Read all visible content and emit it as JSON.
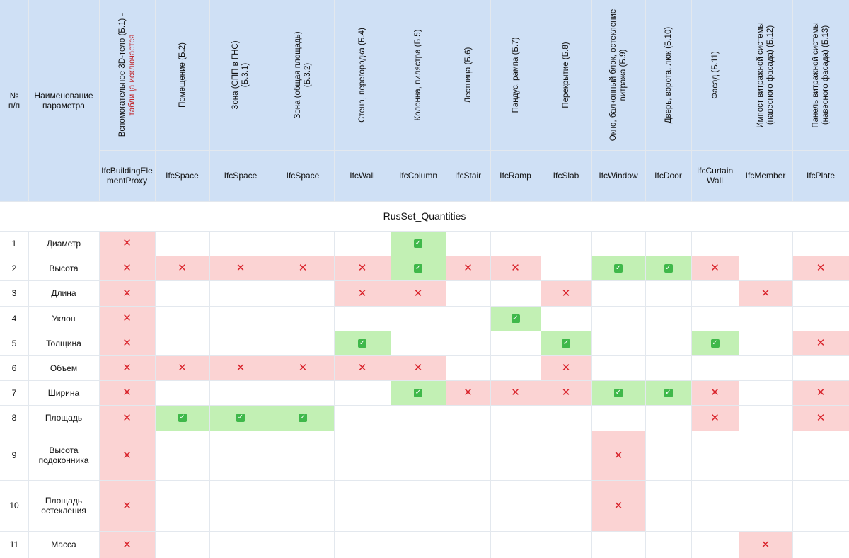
{
  "header": {
    "num_label": "№\nп/п",
    "name_label": "Наименование\nпараметра",
    "columns": [
      {
        "lines": [
          "Вспомогательное 3D-тело (Б.1) -"
        ],
        "warn": "таблица исключается",
        "ifc": "IfcBuildingElementProxy"
      },
      {
        "lines": [
          "Помещение (Б.2)"
        ],
        "ifc": "IfcSpace"
      },
      {
        "lines": [
          "Зона (СПП в ГНС)",
          "(Б.3.1)"
        ],
        "ifc": "IfcSpace"
      },
      {
        "lines": [
          "Зона (общая площадь)",
          "(Б.3.2)"
        ],
        "ifc": "IfcSpace"
      },
      {
        "lines": [
          "Стена, перегородка (Б.4)"
        ],
        "ifc": "IfcWall"
      },
      {
        "lines": [
          "Колонна, пилястра (Б.5)"
        ],
        "ifc": "IfcColumn"
      },
      {
        "lines": [
          "Лестница (Б.6)"
        ],
        "ifc": "IfcStair"
      },
      {
        "lines": [
          "Пандус, рампа (Б.7)"
        ],
        "ifc": "IfcRamp"
      },
      {
        "lines": [
          "Перекрытие (Б.8)"
        ],
        "ifc": "IfcSlab"
      },
      {
        "lines": [
          "Окно, балконный блок, остекление",
          "витража (Б.9)"
        ],
        "ifc": "IfcWindow"
      },
      {
        "lines": [
          "Дверь, ворота, люк (Б.10)"
        ],
        "ifc": "IfcDoor"
      },
      {
        "lines": [
          "Фасад (Б.11)"
        ],
        "ifc": "IfcCurtainWall"
      },
      {
        "lines": [
          "Импост витражной системы",
          "(навесного фасада) (Б.12)"
        ],
        "ifc": "IfcMember"
      },
      {
        "lines": [
          "Панель витражной системы",
          "(навесного фасада) (Б.13)"
        ],
        "ifc": "IfcPlate"
      }
    ]
  },
  "section_title": "RusSet_Quantities",
  "legend": {
    "x": "✕",
    "ok": "✓"
  },
  "rows": [
    {
      "num": "1",
      "name": "Диаметр",
      "cells": [
        "x",
        "",
        "",
        "",
        "",
        "ok",
        "",
        "",
        "",
        "",
        "",
        "",
        "",
        ""
      ]
    },
    {
      "num": "2",
      "name": "Высота",
      "cells": [
        "x",
        "x",
        "x",
        "x",
        "x",
        "ok",
        "x",
        "x",
        "",
        "ok",
        "ok",
        "x",
        "",
        "x"
      ]
    },
    {
      "num": "3",
      "name": "Длина",
      "cells": [
        "x",
        "",
        "",
        "",
        "x",
        "x",
        "",
        "",
        "x",
        "",
        "",
        "",
        "x",
        ""
      ]
    },
    {
      "num": "4",
      "name": "Уклон",
      "cells": [
        "x",
        "",
        "",
        "",
        "",
        "",
        "",
        "ok",
        "",
        "",
        "",
        "",
        "",
        ""
      ]
    },
    {
      "num": "5",
      "name": "Толщина",
      "cells": [
        "x",
        "",
        "",
        "",
        "ok",
        "",
        "",
        "",
        "ok",
        "",
        "",
        "ok",
        "",
        "x"
      ]
    },
    {
      "num": "6",
      "name": "Объем",
      "cells": [
        "x",
        "x",
        "x",
        "x",
        "x",
        "x",
        "",
        "",
        "x",
        "",
        "",
        "",
        "",
        ""
      ]
    },
    {
      "num": "7",
      "name": "Ширина",
      "cells": [
        "x",
        "",
        "",
        "",
        "",
        "ok",
        "x",
        "x",
        "x",
        "ok",
        "ok",
        "x",
        "",
        "x"
      ]
    },
    {
      "num": "8",
      "name": "Площадь",
      "cells": [
        "x",
        "ok",
        "ok",
        "ok",
        "",
        "",
        "",
        "",
        "",
        "",
        "",
        "x",
        "",
        "x"
      ]
    },
    {
      "num": "9",
      "name": "Высота\nподоконника",
      "cells": [
        "x",
        "",
        "",
        "",
        "",
        "",
        "",
        "",
        "",
        "x",
        "",
        "",
        "",
        ""
      ]
    },
    {
      "num": "10",
      "name": "Площадь\nостекления",
      "cells": [
        "x",
        "",
        "",
        "",
        "",
        "",
        "",
        "",
        "",
        "x",
        "",
        "",
        "",
        ""
      ]
    },
    {
      "num": "11",
      "name": "Масса",
      "cells": [
        "x",
        "",
        "",
        "",
        "",
        "",
        "",
        "",
        "",
        "",
        "",
        "",
        "x",
        ""
      ]
    }
  ]
}
